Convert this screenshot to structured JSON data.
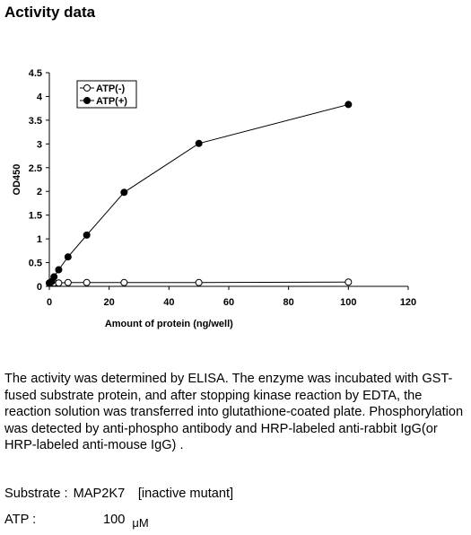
{
  "page": {
    "title": "Activity data",
    "description": "The activity was determined by ELISA. The enzyme was incubated with GST-fused substrate protein, and after stopping kinase reaction by EDTA, the reaction solution was transferred into glutathione-coated plate. Phosphorylation was detected by anti-phospho antibody and HRP-labeled anti-rabbit IgG(or HRP-labeled anti-mouse IgG) .",
    "substrate_label": "Substrate :",
    "substrate_value": "MAP2K7　[inactive mutant]",
    "atp_label": "ATP :",
    "atp_value": "100",
    "atp_unit": "μM"
  },
  "chart_data": {
    "type": "line",
    "title": "",
    "xlabel": "Amount of protein (ng/well)",
    "ylabel": "OD450",
    "xlim": [
      0,
      120
    ],
    "ylim": [
      0,
      4.5
    ],
    "xticks": [
      0,
      20,
      40,
      60,
      80,
      100,
      120
    ],
    "yticks": [
      0,
      0.5,
      1,
      1.5,
      2,
      2.5,
      3,
      3.5,
      4,
      4.5
    ],
    "grid": false,
    "legend_position": "top-left",
    "series": [
      {
        "name": "ATP(-)",
        "marker": "open-circle",
        "color": "#000000",
        "x": [
          0,
          0.78,
          1.56,
          3.13,
          6.25,
          12.5,
          25,
          50,
          100
        ],
        "y": [
          0.07,
          0.07,
          0.07,
          0.07,
          0.08,
          0.08,
          0.08,
          0.08,
          0.09
        ]
      },
      {
        "name": "ATP(+)",
        "marker": "filled-circle",
        "color": "#000000",
        "x": [
          0,
          0.78,
          1.56,
          3.13,
          6.25,
          12.5,
          25,
          50,
          100
        ],
        "y": [
          0.07,
          0.1,
          0.2,
          0.35,
          0.62,
          1.08,
          1.98,
          3.01,
          3.83
        ]
      }
    ]
  }
}
